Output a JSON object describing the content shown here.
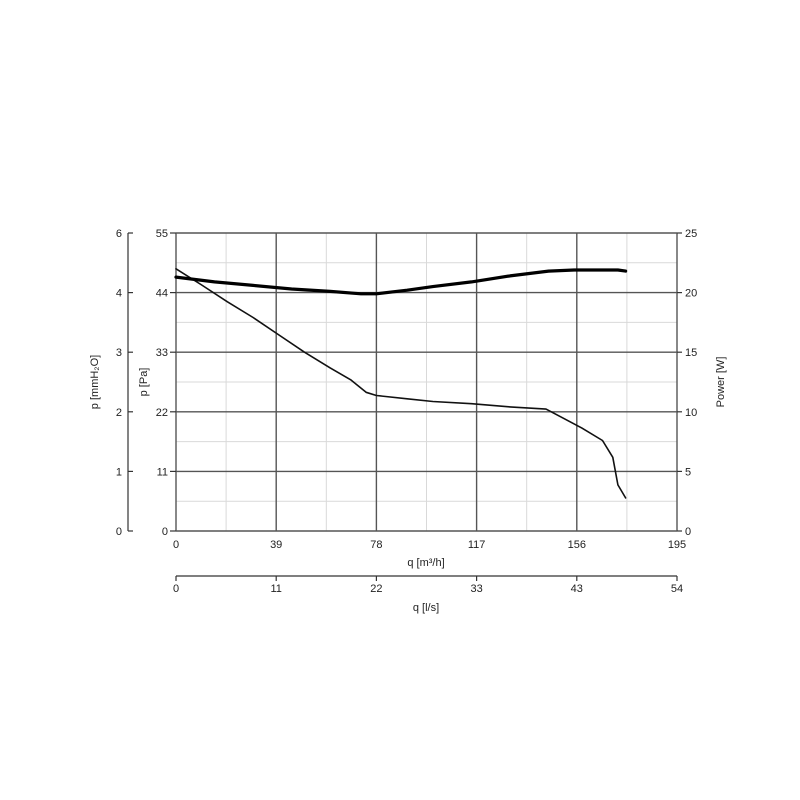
{
  "chart_data": {
    "type": "line",
    "x_axis_flow_m3h": {
      "label": "q [m³/h]",
      "ticks": [
        0,
        39,
        78,
        117,
        156,
        195
      ],
      "range": [
        0,
        195
      ]
    },
    "x_axis_flow_ls": {
      "label": "q [l/s]",
      "ticks": [
        0,
        11,
        22,
        33,
        43,
        54
      ],
      "range": [
        0,
        54
      ]
    },
    "y_axis_mmh2o": {
      "label": "p [mmH₂O]",
      "ticks": [
        0,
        1,
        2,
        3,
        4,
        6
      ],
      "range": [
        0,
        6
      ]
    },
    "y_axis_pa": {
      "label": "p [Pa]",
      "ticks": [
        0,
        11,
        22,
        33,
        44,
        55
      ],
      "range": [
        0,
        55
      ]
    },
    "y_axis_power": {
      "label": "Power [W]",
      "ticks": [
        0,
        5,
        10,
        15,
        20,
        25
      ],
      "range": [
        0,
        25
      ]
    },
    "grid": true,
    "series": [
      {
        "role": "pressure",
        "axis": "p [Pa]",
        "stroke": "#111111",
        "width": 1.6,
        "points": [
          [
            0,
            48.4
          ],
          [
            10,
            45.4
          ],
          [
            20,
            42.3
          ],
          [
            30,
            39.4
          ],
          [
            40,
            36.2
          ],
          [
            50,
            33.0
          ],
          [
            60,
            30.1
          ],
          [
            68,
            27.9
          ],
          [
            74,
            25.6
          ],
          [
            78,
            25.0
          ],
          [
            90,
            24.4
          ],
          [
            100,
            23.9
          ],
          [
            115,
            23.5
          ],
          [
            130,
            22.9
          ],
          [
            144,
            22.5
          ],
          [
            150,
            21.0
          ],
          [
            158,
            19.0
          ],
          [
            166,
            16.7
          ],
          [
            170,
            13.6
          ],
          [
            172,
            8.5
          ],
          [
            175,
            6.1
          ]
        ]
      },
      {
        "role": "power",
        "axis": "Power [W]",
        "stroke": "#000000",
        "width": 3.2,
        "points": [
          [
            0,
            21.3
          ],
          [
            15,
            20.9
          ],
          [
            30,
            20.6
          ],
          [
            45,
            20.3
          ],
          [
            60,
            20.1
          ],
          [
            72,
            19.9
          ],
          [
            78,
            19.9
          ],
          [
            90,
            20.2
          ],
          [
            100,
            20.5
          ],
          [
            115,
            20.9
          ],
          [
            130,
            21.4
          ],
          [
            145,
            21.8
          ],
          [
            155,
            21.9
          ],
          [
            165,
            21.9
          ],
          [
            172,
            21.9
          ],
          [
            175,
            21.8
          ]
        ]
      }
    ]
  }
}
